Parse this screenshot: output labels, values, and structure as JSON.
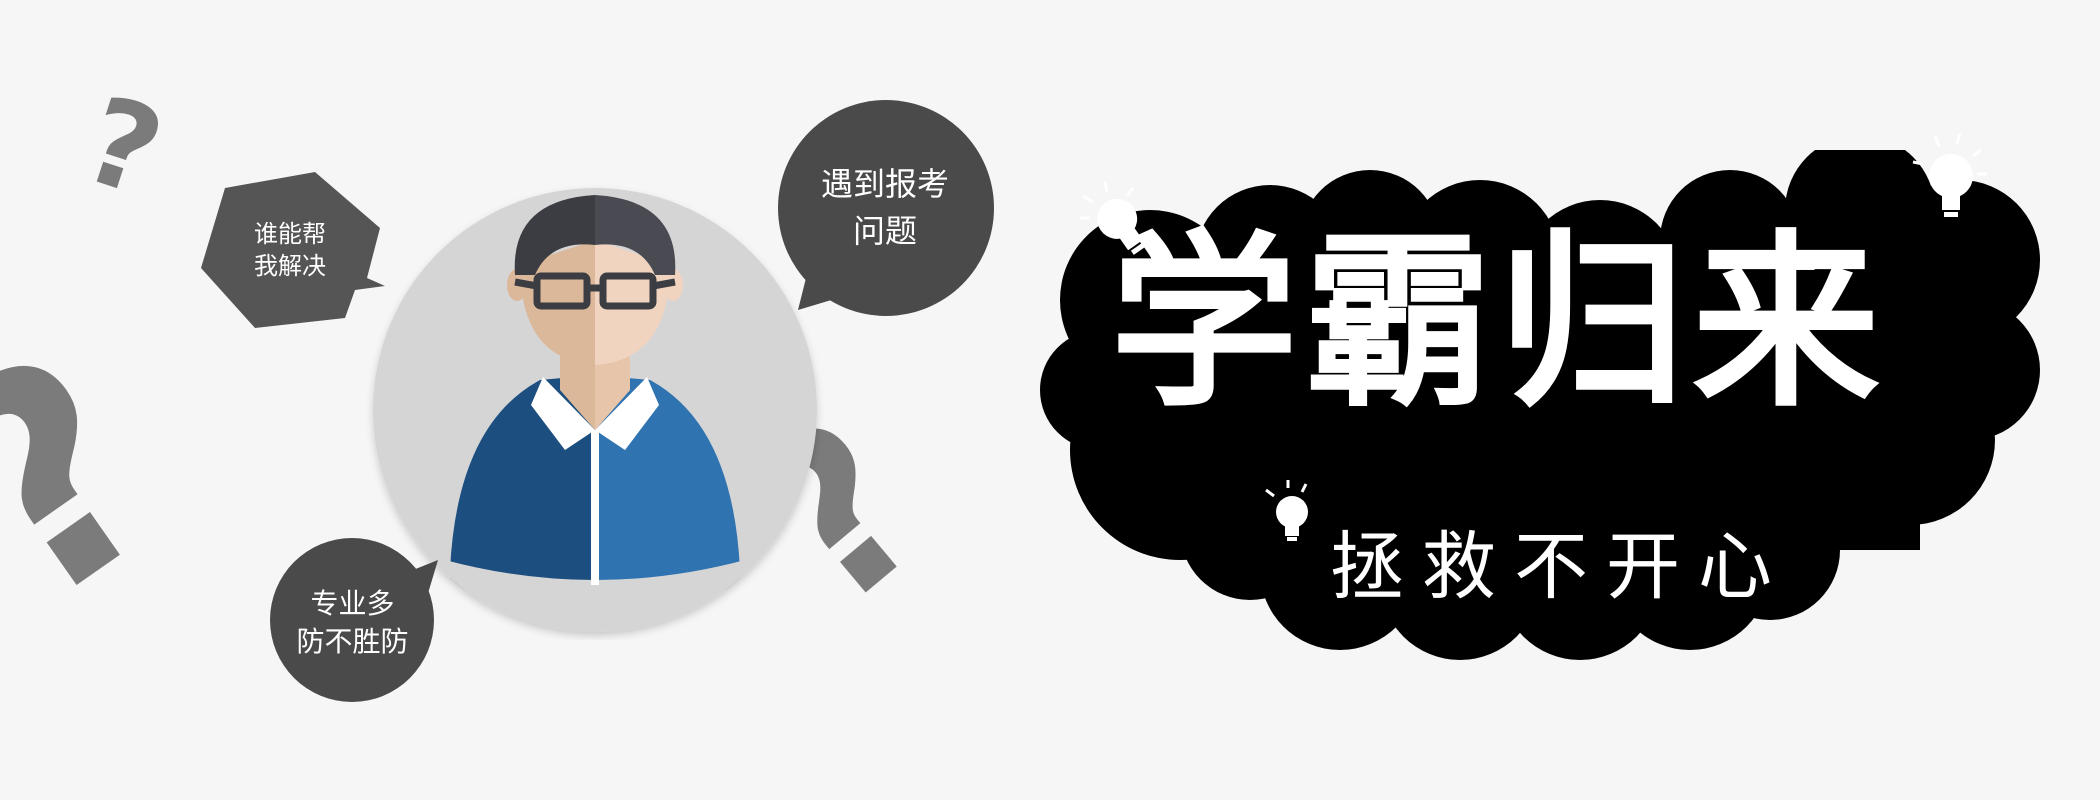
{
  "colors": {
    "background": "#f6f6f6",
    "qmark": "#7b7b7b",
    "bubble_dark": "#555555",
    "bubble_mid": "#4a4a4a",
    "circle_bg": "#d6d5d6",
    "shirt_dark": "#1c4f80",
    "shirt_light": "#2f74b0",
    "skin_dark": "#dcb89a",
    "skin_light": "#f0d4c0",
    "hair": "#3c3d42",
    "cloud": "#000000",
    "title_text": "#ffffff"
  },
  "bubbles": {
    "top_left": {
      "line1": "谁能帮",
      "line2": "我解决"
    },
    "top_right": {
      "line1": "遇到报考",
      "line2": "问题"
    },
    "bottom_left": {
      "line1": "专业多",
      "line2": "防不胜防"
    }
  },
  "qmarks": {
    "glyph": "?"
  },
  "title": {
    "main": "学霸归来",
    "sub": "拯救不开心"
  },
  "icons": [
    "question-mark-icon",
    "lightbulb-icon",
    "person-avatar-icon",
    "glasses-icon"
  ]
}
